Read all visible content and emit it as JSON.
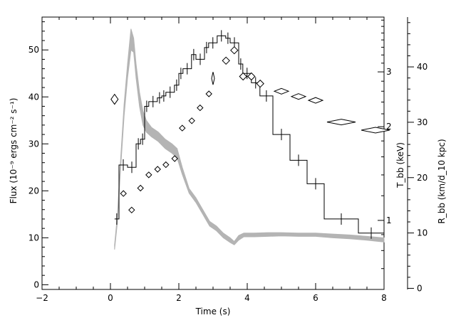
{
  "chart_data": {
    "type": "line",
    "title": "",
    "xlabel": "Time (s)",
    "ylabel_left": "Flux (10⁻⁹ ergs cm⁻² s⁻¹)",
    "ylabel_t": "T_bb (keV)",
    "ylabel_r": "R_bb (km/d_10 kpc)",
    "xlim": [
      -2,
      8
    ],
    "ylim_flux": [
      -1,
      57
    ],
    "ylim_t_log": [
      0.6,
      4.5
    ],
    "ylim_r": [
      -0.2,
      49
    ],
    "grid": false,
    "legend": "none",
    "x_ticks": [
      "−2",
      "0",
      "2",
      "4",
      "6",
      "8"
    ],
    "flux_ticks": [
      "0",
      "10",
      "20",
      "30",
      "40",
      "50"
    ],
    "t_ticks": [
      "1",
      "2",
      "3"
    ],
    "r_ticks": [
      "0",
      "10",
      "20",
      "30",
      "40"
    ],
    "series": [
      {
        "kind": "flux_step",
        "color": "#000000",
        "bins": [
          [
            0.12,
            0.25,
            14.0
          ],
          [
            0.25,
            0.5,
            25.5
          ],
          [
            0.5,
            0.75,
            25.0
          ],
          [
            0.75,
            0.88,
            30.0
          ],
          [
            0.88,
            1.0,
            31.0
          ],
          [
            1.0,
            1.12,
            38.0
          ],
          [
            1.12,
            1.37,
            39.0
          ],
          [
            1.37,
            1.5,
            39.8
          ],
          [
            1.5,
            1.62,
            40.2
          ],
          [
            1.62,
            1.87,
            41.0
          ],
          [
            1.87,
            2.0,
            42.5
          ],
          [
            2.0,
            2.12,
            45.0
          ],
          [
            2.12,
            2.37,
            46.0
          ],
          [
            2.37,
            2.5,
            49.0
          ],
          [
            2.5,
            2.75,
            48.0
          ],
          [
            2.75,
            2.87,
            50.5
          ],
          [
            2.87,
            3.12,
            51.5
          ],
          [
            3.12,
            3.37,
            53.0
          ],
          [
            3.37,
            3.5,
            52.5
          ],
          [
            3.5,
            3.75,
            51.5
          ],
          [
            3.75,
            3.87,
            47.0
          ],
          [
            3.87,
            4.12,
            45.0
          ],
          [
            4.12,
            4.37,
            43.0
          ],
          [
            4.37,
            4.75,
            40.2
          ],
          [
            4.75,
            5.25,
            32.0
          ],
          [
            5.25,
            5.75,
            26.5
          ],
          [
            5.75,
            6.25,
            21.5
          ],
          [
            6.25,
            7.25,
            14.0
          ],
          [
            7.25,
            8.0,
            11.0
          ]
        ]
      },
      {
        "kind": "flux_model_band",
        "color": "#b4b4b4",
        "x": [
          0.12,
          0.2,
          0.3,
          0.4,
          0.5,
          0.6,
          0.68,
          0.75,
          0.85,
          0.95,
          1.05,
          1.2,
          1.4,
          1.6,
          1.8,
          1.95,
          2.1,
          2.3,
          2.5,
          2.7,
          2.9,
          3.1,
          3.3,
          3.5,
          3.62,
          3.75,
          3.9,
          4.2,
          4.6,
          5.0,
          5.5,
          6.0,
          6.5,
          7.0,
          7.5,
          8.0
        ],
        "lo": [
          7.5,
          13.0,
          25.0,
          36.0,
          44.0,
          50.0,
          49.5,
          44.0,
          38.0,
          34.0,
          32.5,
          31.5,
          30.5,
          29.0,
          28.0,
          27.0,
          23.5,
          19.5,
          17.5,
          15.0,
          12.5,
          11.5,
          10.0,
          9.0,
          8.5,
          9.5,
          10.2,
          10.2,
          10.3,
          10.4,
          10.3,
          10.3,
          10.0,
          9.8,
          9.5,
          9.1
        ],
        "hi": [
          8.5,
          14.5,
          27.0,
          38.5,
          47.0,
          54.5,
          52.5,
          47.0,
          41.0,
          37.0,
          35.0,
          33.5,
          32.5,
          31.0,
          30.0,
          29.0,
          25.0,
          20.5,
          18.5,
          16.0,
          13.5,
          12.5,
          11.0,
          10.0,
          9.2,
          10.5,
          11.0,
          11.0,
          11.1,
          11.1,
          11.0,
          11.0,
          10.8,
          10.6,
          10.3,
          10.0
        ]
      },
      {
        "kind": "temperature",
        "color": "#000000",
        "points": [
          [
            0.12,
            2.45
          ],
          [
            0.38,
            1.22
          ],
          [
            0.62,
            1.08
          ],
          [
            0.88,
            1.27
          ],
          [
            1.12,
            1.4
          ],
          [
            1.38,
            1.46
          ],
          [
            1.62,
            1.51
          ],
          [
            1.88,
            1.58
          ],
          [
            2.1,
            1.98
          ],
          [
            2.38,
            2.09
          ],
          [
            2.62,
            2.3
          ],
          [
            2.88,
            2.55
          ],
          [
            3.0,
            2.86
          ],
          [
            3.38,
            3.26
          ],
          [
            3.62,
            3.52
          ],
          [
            3.88,
            2.9
          ],
          [
            4.12,
            2.9
          ],
          [
            4.38,
            2.75
          ],
          [
            5.0,
            2.6
          ],
          [
            5.5,
            2.5
          ],
          [
            6.0,
            2.43
          ],
          [
            6.75,
            2.07
          ],
          [
            7.75,
            1.95
          ]
        ]
      }
    ]
  }
}
